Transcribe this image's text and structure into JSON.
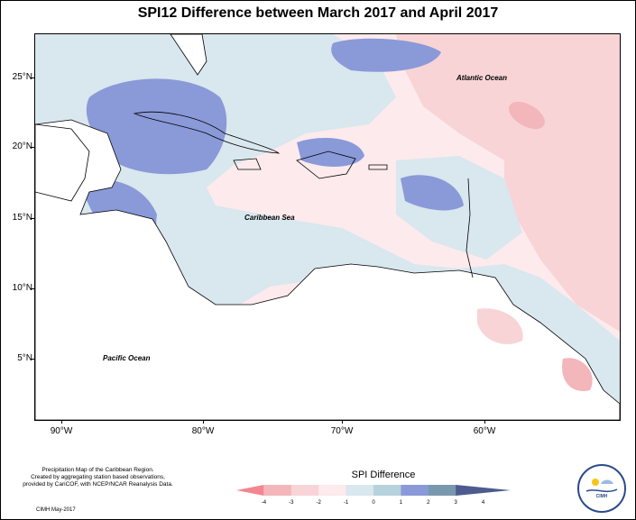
{
  "title": "SPI12 Difference between March 2017 and April 2017",
  "map": {
    "y_ticks": [
      "25°N",
      "20°N",
      "15°N",
      "10°N",
      "5°N"
    ],
    "x_ticks": [
      "90°W",
      "80°W",
      "70°W",
      "60°W"
    ],
    "labels": {
      "atlantic": "Atlantic Ocean",
      "caribbean": "Caribbean Sea",
      "pacific": "Pacific Ocean"
    }
  },
  "credits": {
    "line1": "Precipitation Map of the Caribbean Region.",
    "line2": "Created by aggregating station based observations,",
    "line3": "provided by CariCOF, with NCEP/NCAR Reanalysis Data.",
    "date": "CIMH May-2017"
  },
  "legend": {
    "title": "SPI Difference",
    "labels": [
      "-4",
      "-3",
      "-2",
      "-1",
      "0",
      "1",
      "2",
      "3",
      "4"
    ],
    "colors": [
      "#f4858f",
      "#f3b6bb",
      "#f8d4d6",
      "#fdeaec",
      "#d9e7ee",
      "#b6d2dd",
      "#8a99d8",
      "#7a98ad",
      "#4e5b8e"
    ]
  },
  "logo": {
    "text": "CIMH"
  }
}
